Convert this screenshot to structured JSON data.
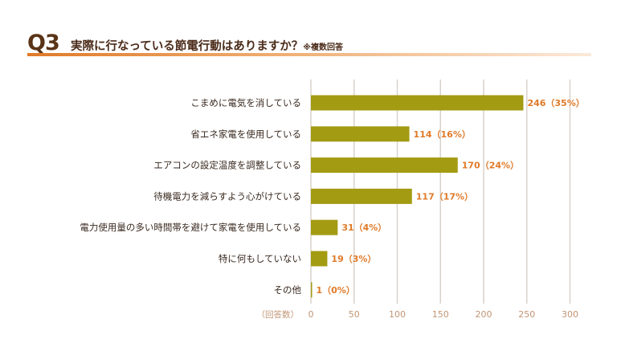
{
  "header": {
    "q_number": "Q3",
    "question": "実際に行なっている節電行動はありますか？",
    "note": "※複数回答"
  },
  "chart_data": {
    "type": "bar",
    "orientation": "horizontal",
    "categories": [
      "こまめに電気を消している",
      "省エネ家電を使用している",
      "エアコンの設定温度を調整している",
      "待機電力を減らすよう心がけている",
      "電力使用量の多い時間帯を避けて家電を使用している",
      "特に何もしていない",
      "その他"
    ],
    "values": [
      246,
      114,
      170,
      117,
      31,
      19,
      1
    ],
    "data_labels": [
      "246（35%）",
      "114（16%）",
      "170（24%）",
      "117（17%）",
      "31（4%）",
      "19（3%）",
      "1（0%）"
    ],
    "x_ticks": [
      0,
      50,
      100,
      150,
      200,
      250,
      300
    ],
    "xlim": [
      0,
      300
    ],
    "xlabel": "（回答数）",
    "grid": true,
    "colors": {
      "bar": "#a39b12",
      "label": "#e07a28",
      "grid": "#d9d2cb",
      "tick": "#c19574",
      "category": "#3a2a20"
    }
  }
}
